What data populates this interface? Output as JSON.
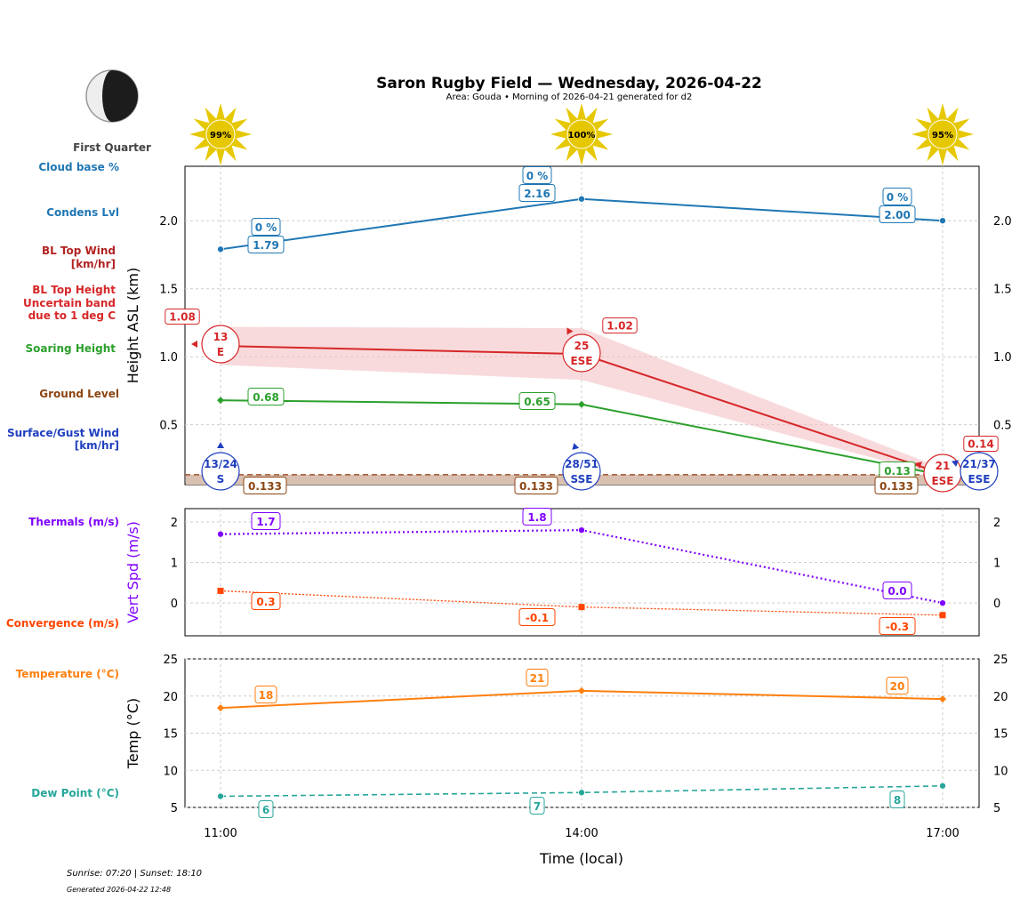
{
  "header": {
    "title": "Saron Rugby Field — Wednesday, 2026-04-22",
    "subtitle": "Area: Gouda • Morning of 2026-04-21 generated for d2",
    "moon_phase": "First Quarter",
    "sun_values": [
      "99%",
      "100%",
      "95%"
    ]
  },
  "side_labels": {
    "cloud_base": "Cloud base %",
    "condens": "Condens Lvl",
    "bl_wind_1": "BL Top Wind",
    "bl_wind_2": "[km/hr]",
    "bl_top_1": "BL Top Height",
    "bl_top_2": "Uncertain band",
    "bl_top_3": "due to 1 deg C",
    "soaring": "Soaring Height",
    "ground": "Ground Level",
    "surface_1": "Surface/Gust Wind",
    "surface_2": "[km/hr]",
    "thermals": "Thermals (m/s)",
    "convergence": "Convergence (m/s)",
    "temperature": "Temperature (°C)",
    "dew": "Dew Point (°C)"
  },
  "footer": {
    "sun_times": "Sunrise: 07:20 | Sunset: 18:10",
    "generated": "Generated 2026-04-22 12:48"
  },
  "colors": {
    "condens": "#1f77b4",
    "bl_top": "#d62728",
    "band": "#f4c2c4",
    "soaring": "#2ca02c",
    "ground": "#8b4513",
    "surface": "#1f3fbf",
    "thermals": "#8000ff",
    "convergence": "#ff4500",
    "temperature": "#ff7f0e",
    "dew": "#26a69a",
    "sun": "#e6c800"
  },
  "chart_data": [
    {
      "type": "line",
      "ylabel": "Height ASL (km)",
      "x": [
        "11:00",
        "14:00",
        "17:00"
      ],
      "ylim": [
        0.06,
        2.4
      ],
      "yticks": [
        0.5,
        1.0,
        1.5,
        2.0
      ],
      "ytick_labels": [
        "0.5",
        "1.0",
        "1.5",
        "2.0"
      ],
      "grid": true,
      "series": {
        "condens": {
          "values": [
            1.79,
            2.16,
            2.0
          ],
          "labels": [
            "1.79",
            "2.16",
            "2.00"
          ]
        },
        "cloud_base_pct": [
          "0 %",
          "0 %",
          "0 %"
        ],
        "bl_top": {
          "values": [
            1.08,
            1.02,
            0.14
          ],
          "labels": [
            "1.08",
            "1.02",
            "0.14"
          ],
          "band_upper": [
            1.22,
            1.21,
            0.18
          ],
          "band_lower": [
            0.94,
            0.83,
            0.12
          ]
        },
        "soaring": {
          "values": [
            0.68,
            0.65,
            0.13
          ],
          "labels": [
            "0.68",
            "0.65",
            "0.13"
          ]
        },
        "ground": {
          "value": 0.133,
          "labels": [
            "0.133",
            "0.133",
            "0.133"
          ]
        },
        "bl_wind": [
          {
            "speed": "13",
            "dir": "E"
          },
          {
            "speed": "25",
            "dir": "ESE"
          },
          {
            "speed": "21",
            "dir": "ESE"
          }
        ],
        "surface_wind": [
          {
            "speed": "13/24",
            "dir": "S"
          },
          {
            "speed": "28/51",
            "dir": "SSE"
          },
          {
            "speed": "21/37",
            "dir": "ESE"
          }
        ]
      }
    },
    {
      "type": "line",
      "ylabel": "Vert Spd (m/s)",
      "x": [
        "11:00",
        "14:00",
        "17:00"
      ],
      "ylim": [
        -0.81,
        2.33
      ],
      "yticks": [
        0,
        1,
        2
      ],
      "ytick_labels": [
        "0",
        "1",
        "2"
      ],
      "grid": true,
      "series": {
        "thermals": {
          "values": [
            1.7,
            1.8,
            0.0
          ],
          "labels": [
            "1.7",
            "1.8",
            "0.0"
          ]
        },
        "convergence": {
          "values": [
            0.3,
            -0.1,
            -0.3
          ],
          "labels": [
            "0.3",
            "-0.1",
            "-0.3"
          ]
        }
      }
    },
    {
      "type": "line",
      "ylabel": "Temp (°C)",
      "xlabel": "Time (local)",
      "x": [
        "11:00",
        "14:00",
        "17:00"
      ],
      "ylim": [
        5,
        25
      ],
      "yticks": [
        5,
        10,
        15,
        20,
        25
      ],
      "ytick_labels": [
        "5",
        "10",
        "15",
        "20",
        "25"
      ],
      "grid": true,
      "series": {
        "temperature": {
          "values": [
            18.4,
            20.7,
            19.6
          ],
          "labels": [
            "18",
            "21",
            "20"
          ]
        },
        "dew": {
          "values": [
            6.5,
            7.0,
            7.9
          ],
          "labels": [
            "6",
            "7",
            "8"
          ]
        }
      }
    }
  ]
}
